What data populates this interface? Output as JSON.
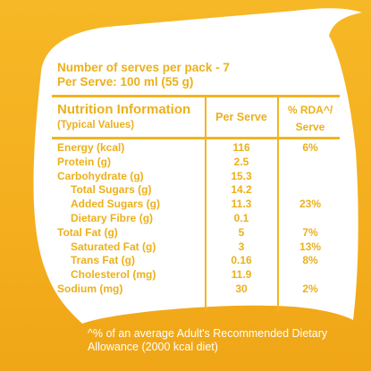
{
  "colors": {
    "background": "#f4ae1e",
    "panel": "#ffffff",
    "text": "#ecb01c",
    "rule": "#f2b420"
  },
  "serves_line": "Number of serves per pack - 7",
  "per_serve_line": "Per Serve: 100 ml (55 g)",
  "header": {
    "title": "Nutrition Information",
    "subtitle": "(Typical Values)",
    "col_per_serve": "Per Serve",
    "col_rda_line1": "% RDA^/",
    "col_rda_line2": "Serve"
  },
  "rows": [
    {
      "label": "Energy (kcal)",
      "value": "116",
      "rda": "6%",
      "indent": 0
    },
    {
      "label": "Protein (g)",
      "value": "2.5",
      "rda": "",
      "indent": 0
    },
    {
      "label": "Carbohydrate (g)",
      "value": "15.3",
      "rda": "",
      "indent": 0
    },
    {
      "label": "Total Sugars (g)",
      "value": "14.2",
      "rda": "",
      "indent": 1
    },
    {
      "label": "Added Sugars (g)",
      "value": "11.3",
      "rda": "23%",
      "indent": 1
    },
    {
      "label": "Dietary Fibre (g)",
      "value": "0.1",
      "rda": "",
      "indent": 1
    },
    {
      "label": "Total Fat (g)",
      "value": "5",
      "rda": "7%",
      "indent": 0
    },
    {
      "label": "Saturated Fat (g)",
      "value": "3",
      "rda": "13%",
      "indent": 1
    },
    {
      "label": "Trans Fat (g)",
      "value": "0.16",
      "rda": "8%",
      "indent": 1
    },
    {
      "label": "Cholesterol (mg)",
      "value": "11.9",
      "rda": "",
      "indent": 1
    },
    {
      "label": "Sodium (mg)",
      "value": "30",
      "rda": "2%",
      "indent": 0
    }
  ],
  "footnote": "^% of an average Adult's Recommended Dietary Allowance (2000 kcal diet)"
}
